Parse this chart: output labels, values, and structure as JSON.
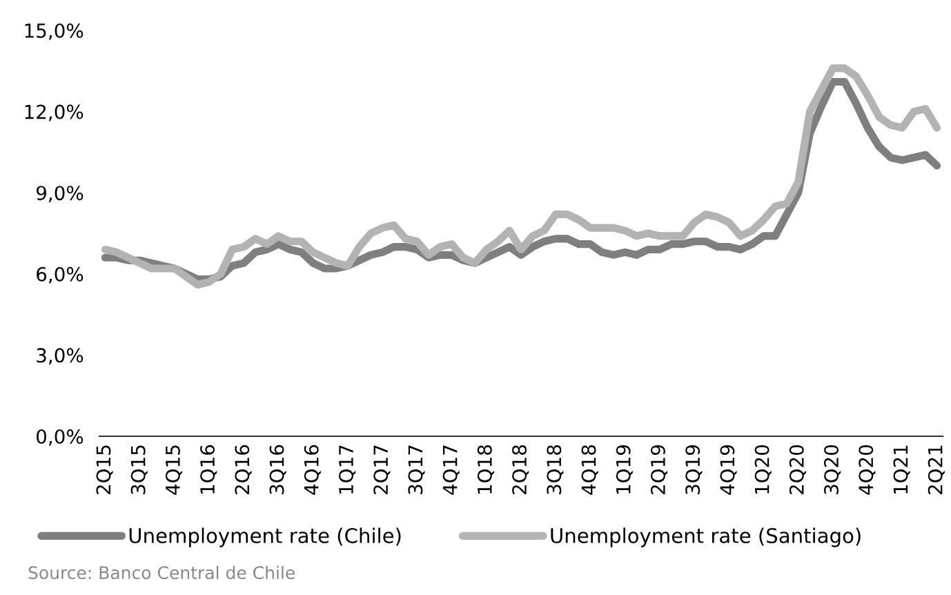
{
  "chart_data": {
    "type": "line",
    "categories": [
      "2Q15",
      null,
      null,
      "3Q15",
      null,
      null,
      "4Q15",
      null,
      null,
      "1Q16",
      null,
      null,
      "2Q16",
      null,
      null,
      "3Q16",
      null,
      null,
      "4Q16",
      null,
      null,
      "1Q17",
      null,
      null,
      "2Q17",
      null,
      null,
      "3Q17",
      null,
      null,
      "4Q17",
      null,
      null,
      "1Q18",
      null,
      null,
      "2Q18",
      null,
      null,
      "3Q18",
      null,
      null,
      "4Q18",
      null,
      null,
      "1Q19",
      null,
      null,
      "2Q19",
      null,
      null,
      "3Q19",
      null,
      null,
      "4Q19",
      null,
      null,
      "1Q20",
      null,
      null,
      "2Q20",
      null,
      null,
      "3Q20",
      null,
      null,
      "4Q20",
      null,
      null,
      "1Q21",
      null,
      null,
      "2Q21"
    ],
    "series": [
      {
        "name": "Unemployment rate (Chile)",
        "color": "#7f7f7f",
        "values": [
          6.6,
          6.6,
          6.5,
          6.5,
          6.4,
          6.3,
          6.2,
          6.0,
          5.8,
          5.8,
          5.9,
          6.3,
          6.4,
          6.8,
          6.9,
          7.1,
          6.9,
          6.8,
          6.4,
          6.2,
          6.2,
          6.3,
          6.5,
          6.7,
          6.8,
          7.0,
          7.0,
          6.9,
          6.6,
          6.7,
          6.7,
          6.5,
          6.4,
          6.6,
          6.8,
          7.0,
          6.7,
          7.0,
          7.2,
          7.3,
          7.3,
          7.1,
          7.1,
          6.8,
          6.7,
          6.8,
          6.7,
          6.9,
          6.9,
          7.1,
          7.1,
          7.2,
          7.2,
          7.0,
          7.0,
          6.9,
          7.1,
          7.4,
          7.4,
          8.2,
          9.0,
          11.2,
          12.2,
          13.1,
          13.1,
          12.3,
          11.4,
          10.7,
          10.3,
          10.2,
          10.3,
          10.4,
          10.0
        ]
      },
      {
        "name": "Unemployment rate (Santiago)",
        "color": "#b3b3b3",
        "values": [
          6.9,
          6.8,
          6.6,
          6.4,
          6.2,
          6.2,
          6.2,
          5.9,
          5.6,
          5.7,
          6.0,
          6.9,
          7.0,
          7.3,
          7.1,
          7.4,
          7.2,
          7.2,
          6.8,
          6.6,
          6.4,
          6.3,
          7.0,
          7.5,
          7.7,
          7.8,
          7.3,
          7.2,
          6.7,
          7.0,
          7.1,
          6.6,
          6.4,
          6.9,
          7.2,
          7.6,
          6.9,
          7.4,
          7.6,
          8.2,
          8.2,
          8.0,
          7.7,
          7.7,
          7.7,
          7.6,
          7.4,
          7.5,
          7.4,
          7.4,
          7.4,
          7.9,
          8.2,
          8.1,
          7.9,
          7.4,
          7.6,
          8.0,
          8.5,
          8.6,
          9.4,
          12.0,
          12.8,
          13.6,
          13.6,
          13.3,
          12.6,
          11.8,
          11.5,
          11.4,
          12.0,
          12.1,
          11.4
        ]
      }
    ],
    "ylim": [
      0,
      15
    ],
    "yticks": [
      {
        "value": 0,
        "label": "0,0%"
      },
      {
        "value": 3,
        "label": "3,0%"
      },
      {
        "value": 6,
        "label": "6,0%"
      },
      {
        "value": 9,
        "label": "9,0%"
      },
      {
        "value": 12,
        "label": "12,0%"
      },
      {
        "value": 15,
        "label": "15,0%"
      }
    ],
    "grid": false,
    "legend": "bottom",
    "marker": "none",
    "line_style": "solid",
    "annotations": [
      "Source: Banco Central de Chile"
    ]
  }
}
